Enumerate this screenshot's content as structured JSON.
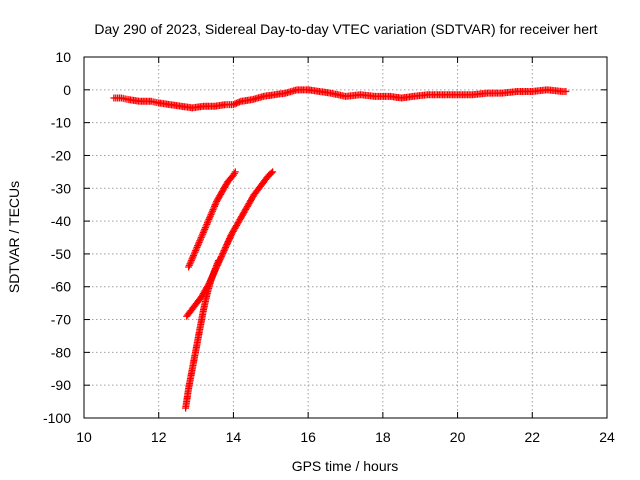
{
  "chart_data": {
    "type": "scatter",
    "title": "Day 290 of 2023, Sidereal Day-to-day VTEC variation (SDTVAR) for receiver hert",
    "xlabel": "GPS time / hours",
    "ylabel": "SDTVAR / TECUs",
    "xlim": [
      10,
      24
    ],
    "ylim": [
      -100,
      10
    ],
    "xticks": [
      10,
      12,
      14,
      16,
      18,
      20,
      22,
      24
    ],
    "yticks": [
      10,
      0,
      -10,
      -20,
      -30,
      -40,
      -50,
      -60,
      -70,
      -80,
      -90,
      -100
    ],
    "grid": true,
    "marker": "+",
    "color": "#ff0000",
    "series": [
      {
        "x": [
          10.8,
          11.0,
          11.2,
          11.5,
          11.8,
          12.0,
          12.3,
          12.6,
          12.9,
          13.2,
          13.5,
          13.8,
          14.0,
          14.2,
          14.5,
          14.8,
          15.1,
          15.4,
          15.7,
          16.0,
          16.3,
          16.6,
          17.0,
          17.4,
          17.8,
          18.2,
          18.5,
          18.8,
          19.2,
          19.6,
          20.0,
          20.4,
          20.8,
          21.2,
          21.6,
          22.0,
          22.4,
          22.8,
          22.9
        ],
        "y": [
          -2.5,
          -2.5,
          -3,
          -3.5,
          -3.5,
          -4,
          -4.5,
          -5,
          -5.5,
          -5,
          -5,
          -4.5,
          -4.5,
          -3.5,
          -3,
          -2,
          -1.5,
          -1,
          0,
          0,
          -0.5,
          -1,
          -2,
          -1.5,
          -2,
          -2,
          -2.5,
          -2,
          -1.5,
          -1.5,
          -1.5,
          -1.5,
          -1,
          -1,
          -0.5,
          -0.5,
          0,
          -0.5,
          -0.5
        ]
      },
      {
        "x": [
          12.8,
          12.95,
          13.1,
          13.25,
          13.4,
          13.55,
          13.7,
          13.85,
          14.0,
          14.05
        ],
        "y": [
          -54,
          -50,
          -46,
          -42,
          -38,
          -34,
          -31,
          -28,
          -26,
          -25
        ]
      },
      {
        "x": [
          12.75,
          12.95,
          13.15,
          13.35,
          13.55,
          13.75,
          13.95,
          14.15,
          14.35,
          14.55,
          14.75,
          14.95,
          15.05
        ],
        "y": [
          -69,
          -66,
          -63,
          -59,
          -54,
          -49,
          -44,
          -40,
          -36,
          -32,
          -29,
          -26,
          -25
        ]
      },
      {
        "x": [
          12.72,
          12.8,
          12.9,
          13.0,
          13.1,
          13.2,
          13.3,
          13.4,
          13.5,
          13.6
        ],
        "y": [
          -97,
          -91,
          -85,
          -79,
          -73,
          -67,
          -62,
          -58,
          -55,
          -52
        ]
      }
    ]
  }
}
